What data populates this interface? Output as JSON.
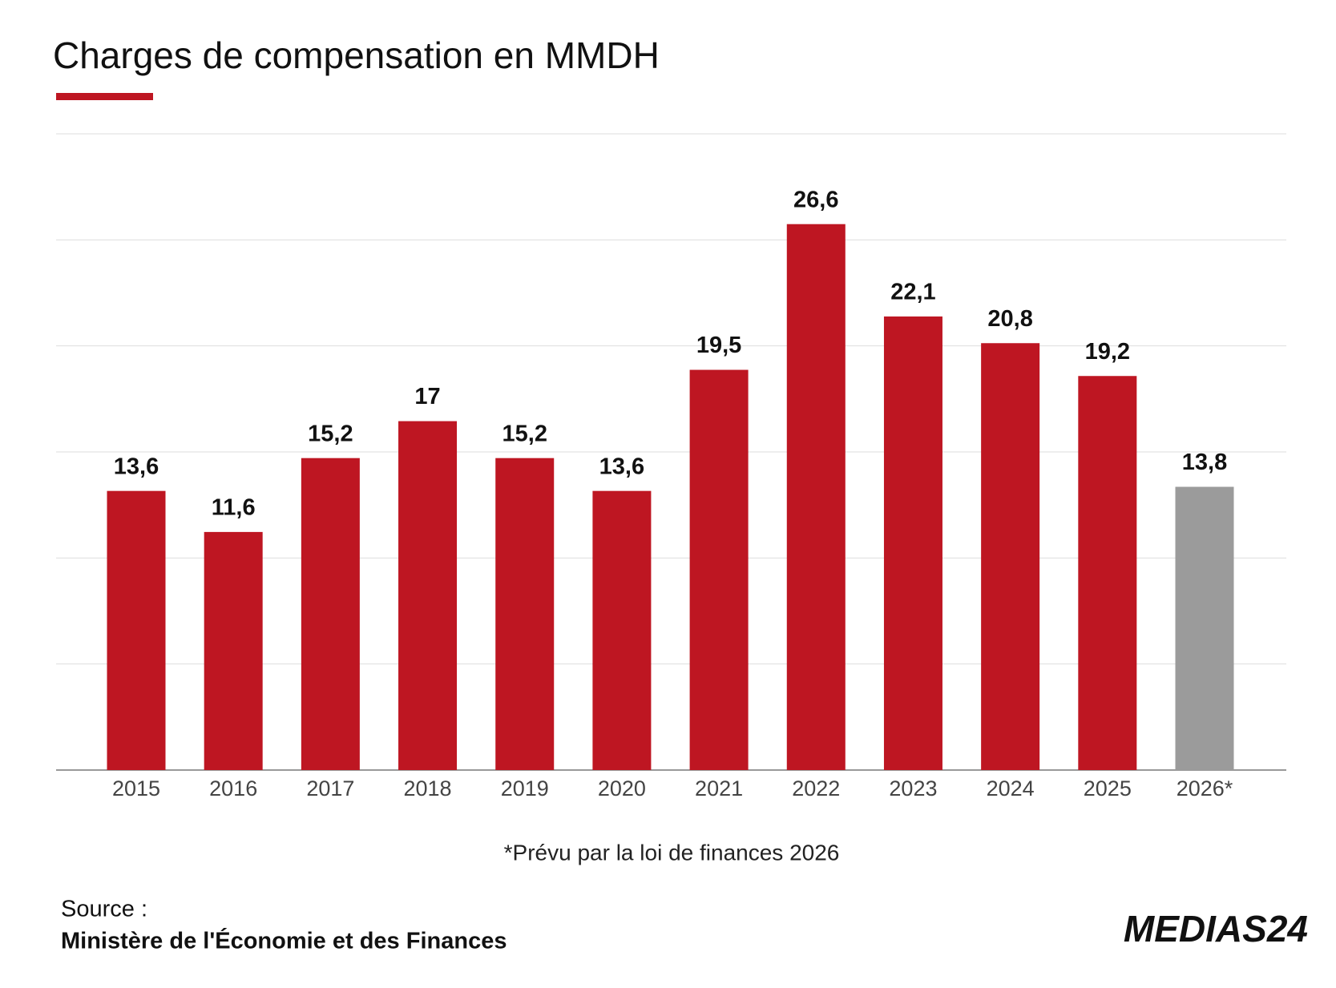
{
  "chart_data": {
    "type": "bar",
    "title": "Charges de compensation en MMDH",
    "categories": [
      "2015",
      "2016",
      "2017",
      "2018",
      "2019",
      "2020",
      "2021",
      "2022",
      "2023",
      "2024",
      "2025",
      "2026*"
    ],
    "values": [
      13.6,
      11.6,
      15.2,
      17,
      15.2,
      13.6,
      19.5,
      26.6,
      22.1,
      20.8,
      19.2,
      13.8
    ],
    "value_labels": [
      "13,6",
      "11,6",
      "15,2",
      "17",
      "15,2",
      "13,6",
      "19,5",
      "26,6",
      "22,1",
      "20,8",
      "19,2",
      "13,8"
    ],
    "colors": [
      "#be1622",
      "#be1622",
      "#be1622",
      "#be1622",
      "#be1622",
      "#be1622",
      "#be1622",
      "#be1622",
      "#be1622",
      "#be1622",
      "#be1622",
      "#9b9b9b"
    ],
    "ylim": [
      0,
      31
    ],
    "yticks": [
      0,
      5.17,
      10.33,
      15.5,
      20.67,
      25.83,
      31
    ],
    "grid": true,
    "footnote": "*Prévu par la loi de finances 2026",
    "source_label": "Source :",
    "source": "Ministère de l'Économie et des Finances",
    "logo": "MEDIAS24"
  }
}
